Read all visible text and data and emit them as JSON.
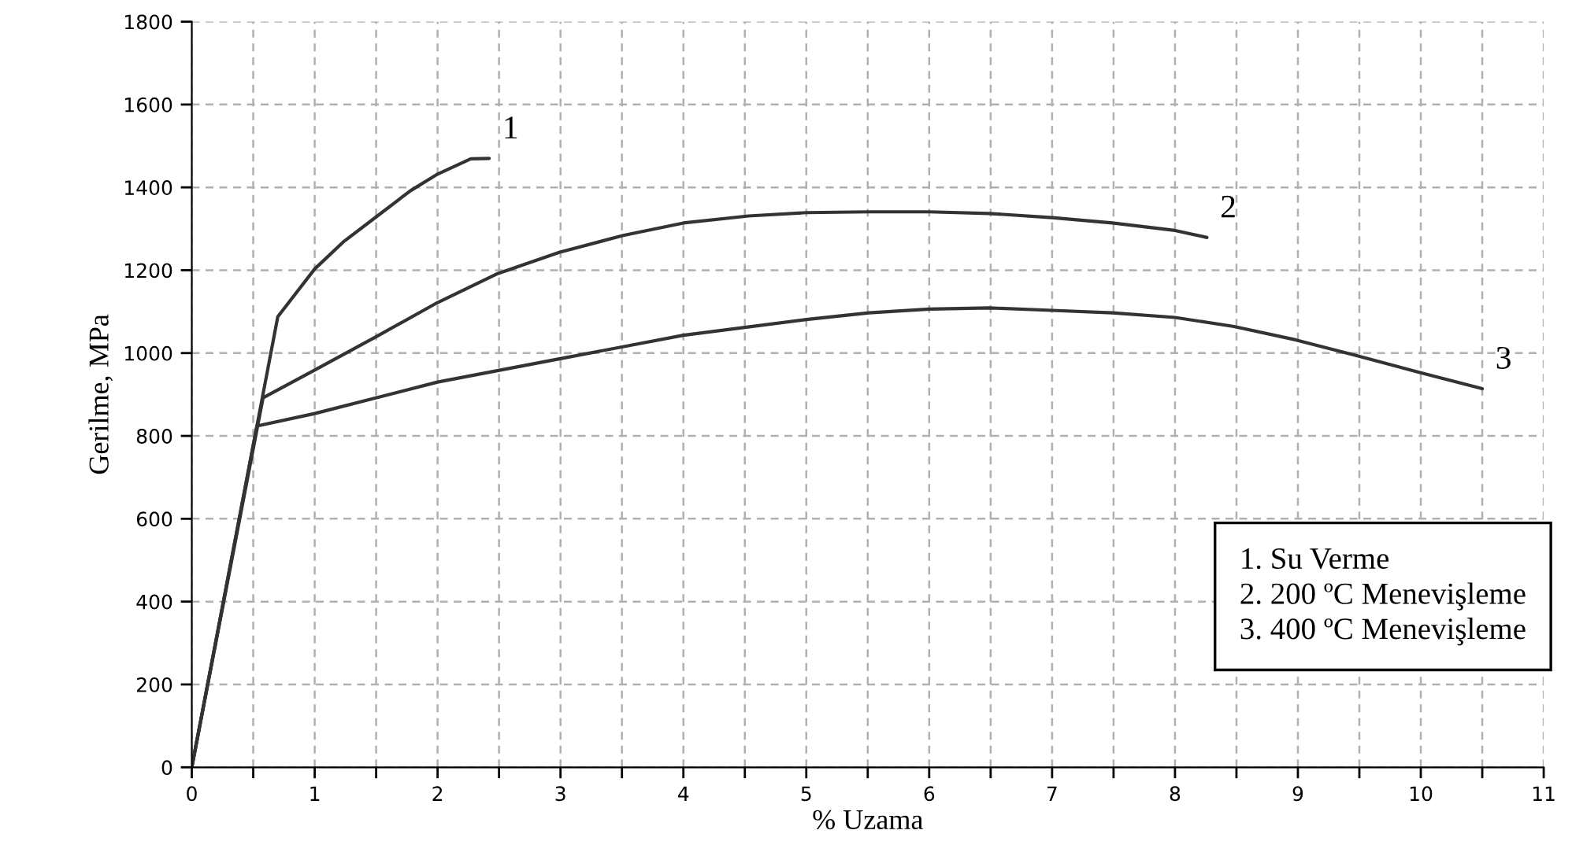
{
  "chart_data": {
    "type": "line",
    "xlabel": "% Uzama",
    "ylabel": "Gerilme, MPa",
    "series": [
      {
        "name": "1",
        "color": "#333333",
        "x": [
          0,
          0.7,
          1.0,
          1.24,
          1.51,
          1.78,
          2.0,
          2.27,
          2.42
        ],
        "values": [
          0,
          1088,
          1203,
          1270,
          1331,
          1392,
          1432,
          1469,
          1470
        ]
      },
      {
        "name": "2",
        "color": "#333333",
        "x": [
          0,
          0.58,
          1.0,
          1.51,
          2.0,
          2.49,
          2.99,
          3.51,
          4.0,
          4.53,
          5.0,
          5.51,
          6.0,
          6.49,
          7.0,
          7.49,
          8.0,
          8.26
        ],
        "values": [
          0,
          892,
          959,
          1041,
          1122,
          1192,
          1243,
          1284,
          1314,
          1331,
          1339,
          1341,
          1341,
          1337,
          1327,
          1314,
          1296,
          1279
        ]
      },
      {
        "name": "3",
        "color": "#333333",
        "x": [
          0,
          0.53,
          1.0,
          2.0,
          2.99,
          4.0,
          5.0,
          5.51,
          6.0,
          6.49,
          7.0,
          7.49,
          8.0,
          8.48,
          8.98,
          9.49,
          9.98,
          10.5
        ],
        "values": [
          0,
          824,
          854,
          930,
          986,
          1043,
          1081,
          1097,
          1106,
          1109,
          1103,
          1097,
          1086,
          1064,
          1032,
          993,
          954,
          914
        ]
      }
    ],
    "annotations": [
      "1. Su Verme",
      "2. 200 ºC Menevişleme",
      "3. 400 ºC Menevişleme"
    ],
    "xlim": [
      0,
      11
    ],
    "ylim": [
      0,
      1800
    ],
    "xticks": [
      0,
      {
        "value": 0.5,
        "label": null
      },
      1,
      {
        "value": 1.5,
        "label": null
      },
      2,
      {
        "value": 2.5,
        "label": null
      },
      3,
      {
        "value": 3.5,
        "label": null
      },
      4,
      {
        "value": 4.5,
        "label": null
      },
      5,
      {
        "value": 5.5,
        "label": null
      },
      6,
      {
        "value": 6.5,
        "label": null
      },
      7,
      {
        "value": 7.5,
        "label": null
      },
      8,
      {
        "value": 8.5,
        "label": null
      },
      9,
      {
        "value": 9.5,
        "label": null
      },
      10,
      {
        "value": 10.5,
        "label": null
      },
      11
    ],
    "yticks": [
      0,
      200,
      400,
      600,
      800,
      1000,
      1200,
      1400,
      1600,
      1800
    ],
    "grid": true,
    "line_style": "solid",
    "marker": "none"
  }
}
